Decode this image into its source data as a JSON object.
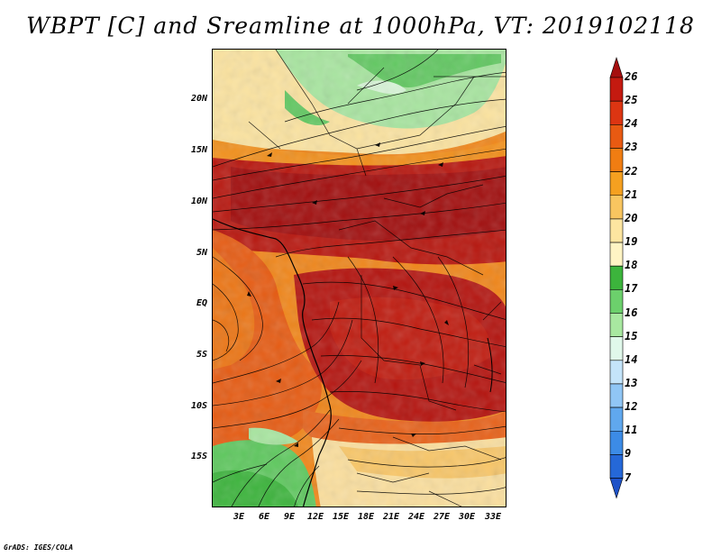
{
  "title": "WBPT [C] and Sreamline at 1000hPa, VT: 2019102118",
  "footer": "GrADS: IGES/COLA",
  "map": {
    "lat_labels": [
      "20N",
      "15N",
      "10N",
      "5N",
      "EQ",
      "5S",
      "10S",
      "15S"
    ],
    "lon_labels": [
      "3E",
      "6E",
      "9E",
      "12E",
      "15E",
      "18E",
      "21E",
      "24E",
      "27E",
      "30E",
      "33E"
    ]
  },
  "colorbar": {
    "levels": [
      "26",
      "25",
      "24",
      "23",
      "22",
      "21",
      "20",
      "19",
      "18",
      "17",
      "16",
      "15",
      "14",
      "13",
      "12",
      "11",
      "9",
      "7"
    ],
    "colors": [
      "#a50f0f",
      "#c41a10",
      "#dc3512",
      "#e85a12",
      "#f07d12",
      "#f5a020",
      "#f8c560",
      "#fde5a0",
      "#fff4c4",
      "#3cb43c",
      "#6cd06c",
      "#a8e8a0",
      "#e0f8ea",
      "#c4e4fa",
      "#90c6f5",
      "#60a8ee",
      "#3c8be6",
      "#2568d8",
      "#1e52c8"
    ]
  }
}
